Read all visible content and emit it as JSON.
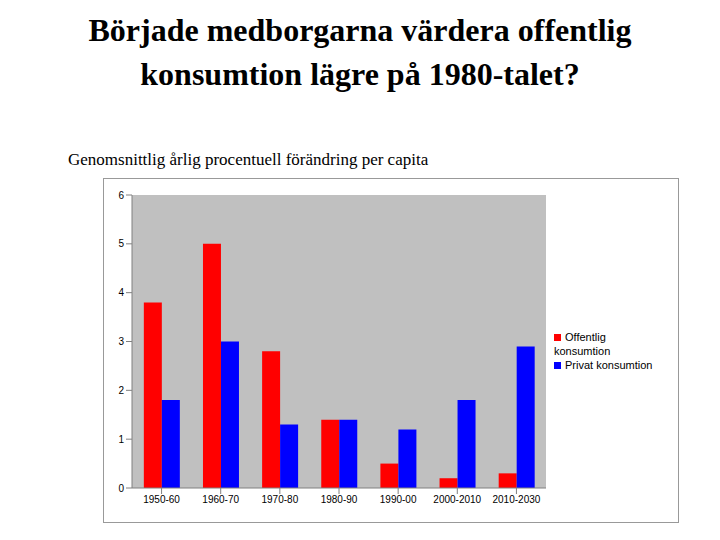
{
  "chart_data": {
    "type": "bar",
    "title": "Började medborgarna värdera offentlig konsumtion lägre på 1980-talet?",
    "subtitle": "Genomsnittlig årlig procentuell förändring per capita",
    "categories": [
      "1950-60",
      "1960-70",
      "1970-80",
      "1980-90",
      "1990-00",
      "2000-2010",
      "2010-2030"
    ],
    "series": [
      {
        "name": "Offentlig konsumtion",
        "color": "#ff0000",
        "values": [
          3.8,
          5.0,
          2.8,
          1.4,
          0.5,
          0.2,
          0.3
        ]
      },
      {
        "name": "Privat konsumtion",
        "color": "#0000ff",
        "values": [
          1.8,
          3.0,
          1.3,
          1.4,
          1.2,
          1.8,
          2.9
        ]
      }
    ],
    "ylim": [
      0,
      6
    ],
    "yticks": [
      0,
      1,
      2,
      3,
      4,
      5,
      6
    ],
    "grid": false,
    "legend": "right"
  }
}
